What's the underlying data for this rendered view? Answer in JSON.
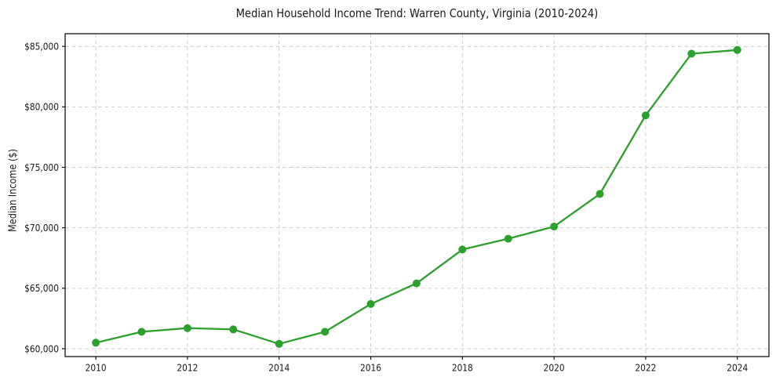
{
  "chart_data": {
    "type": "line",
    "title": "Median Household Income Trend: Warren County, Virginia (2010-2024)",
    "xlabel": "",
    "ylabel": "Median Income ($)",
    "x": [
      2010,
      2011,
      2012,
      2013,
      2014,
      2015,
      2016,
      2017,
      2018,
      2019,
      2020,
      2021,
      2022,
      2023,
      2024
    ],
    "series": [
      {
        "name": "Median Household Income",
        "values": [
          60500,
          61400,
          61700,
          61600,
          60400,
          61400,
          63700,
          65400,
          68200,
          69100,
          70100,
          72800,
          79300,
          84400,
          84700
        ]
      }
    ],
    "x_tick_values": [
      2010,
      2012,
      2014,
      2016,
      2018,
      2020,
      2022,
      2024
    ],
    "x_tick_labels": [
      "2010",
      "2012",
      "2014",
      "2016",
      "2018",
      "2020",
      "2022",
      "2024"
    ],
    "y_tick_values": [
      60000,
      65000,
      70000,
      75000,
      80000,
      85000
    ],
    "y_tick_labels": [
      "$60,000",
      "$65,000",
      "$70,000",
      "$75,000",
      "$80,000",
      "$85,000"
    ],
    "xlim": [
      2009.33,
      2024.69
    ],
    "ylim": [
      59350,
      86050
    ],
    "grid": true,
    "grid_style": "dashed",
    "legend_position": "none",
    "colors": {
      "line": "#2ca02c",
      "marker": "#2ca02c",
      "grid": "#cccccc",
      "spine": "#000000",
      "text": "#1a1a1a",
      "background": "#ffffff"
    }
  }
}
